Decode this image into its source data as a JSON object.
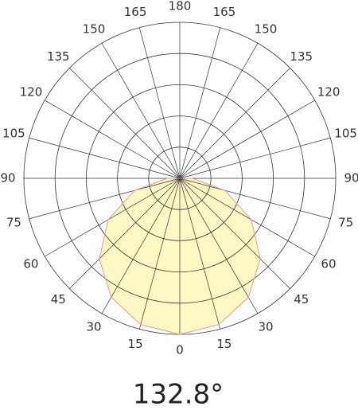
{
  "chart_data": {
    "type": "polar",
    "angles": [
      0,
      15,
      30,
      45,
      60,
      75,
      90,
      105,
      120,
      135,
      150,
      165,
      180
    ],
    "values": [
      100,
      97,
      88,
      73,
      53,
      30,
      8,
      0,
      0,
      0,
      0,
      0,
      0
    ],
    "color": "#fdf8c4",
    "line_color": "#e89a9a",
    "rlim": [
      0,
      100
    ],
    "rticks": [
      20,
      40,
      60,
      80,
      100
    ],
    "thetaticks": [
      0,
      15,
      30,
      45,
      60,
      75,
      90,
      105,
      120,
      135,
      150,
      165,
      180
    ],
    "grid": true,
    "annotation": "132.8°"
  }
}
